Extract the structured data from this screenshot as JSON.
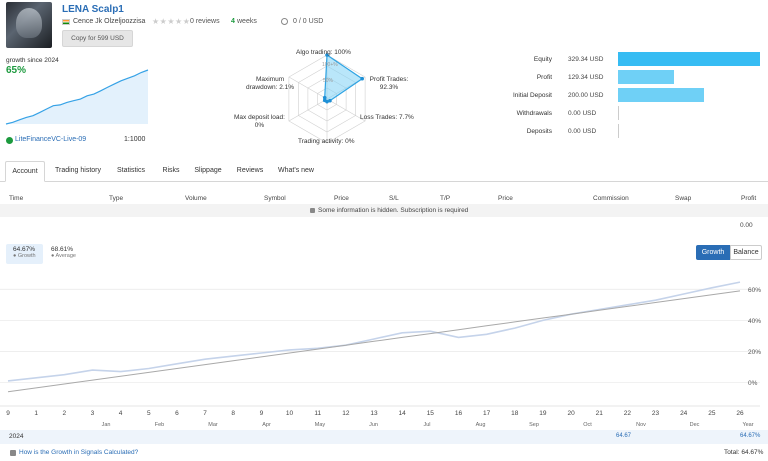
{
  "header": {
    "title": "LENA Scalp1",
    "author": "Cence Jk Olzeljoozzisa",
    "stars": "★★★★★",
    "reviews": "0 reviews",
    "weeks_num": "4",
    "weeks_label": "weeks",
    "cash": "0 / 0 USD",
    "copy_button": "Copy for 599 USD"
  },
  "summary": {
    "growth_since": "growth since 2024",
    "growth_pct": "65%",
    "account": "LiteFinanceVC-Live-09",
    "leverage": "1:1000",
    "sparkline": [
      0,
      2,
      5,
      8,
      10,
      14,
      18,
      22,
      23,
      26,
      28,
      30,
      34,
      36,
      40,
      44,
      48,
      52,
      55,
      58,
      62,
      65
    ]
  },
  "radar": {
    "algo": "Algo trading: 100%",
    "profit_trades": "Profit Trades: 92.3%",
    "loss_trades": "Loss Trades: 7.7%",
    "activity": "Trading activity: 0%",
    "deposit_load": "Max deposit load:",
    "deposit_load_val": "0%",
    "drawdown": "Maximum",
    "drawdown2": "drawdown: 2.1%",
    "ring_100": "100+%",
    "ring_50": "50%",
    "values": {
      "algo": 100,
      "profit": 92.3,
      "loss": 7.7,
      "activity": 0,
      "load": 0,
      "drawdown": 2.1
    }
  },
  "stats": [
    {
      "label": "Equity",
      "value": "329.34 USD",
      "amount": 329.34
    },
    {
      "label": "Profit",
      "value": "129.34 USD",
      "amount": 129.34
    },
    {
      "label": "Initial Deposit",
      "value": "200.00 USD",
      "amount": 200.0
    },
    {
      "label": "Withdrawals",
      "value": "0.00 USD",
      "amount": 0
    },
    {
      "label": "Deposits",
      "value": "0.00 USD",
      "amount": 0
    }
  ],
  "tabs": [
    "Account",
    "Trading history",
    "Statistics",
    "Risks",
    "Slippage",
    "Reviews",
    "What's new"
  ],
  "table": {
    "headers": [
      "Time",
      "Type",
      "Volume",
      "Symbol",
      "Price",
      "S/L",
      "T/P",
      "Price",
      "Commission",
      "Swap",
      "Profit"
    ],
    "hidden_notice": "Some information is hidden. Subscription is required",
    "total": "0.00"
  },
  "growth_tabs": [
    {
      "value": "64.67%",
      "label": "● Growth"
    },
    {
      "value": "68.61%",
      "label": "● Average"
    }
  ],
  "buttons": {
    "growth": "Growth",
    "balance": "Balance"
  },
  "chart_data": {
    "type": "line",
    "y_ticks": [
      "60%",
      "40%",
      "20%",
      "0%"
    ],
    "ylim": [
      -10,
      66
    ],
    "trades_axis": [
      "9",
      "1",
      "2",
      "3",
      "4",
      "5",
      "6",
      "7",
      "8",
      "9",
      "10",
      "11",
      "12",
      "13",
      "14",
      "15",
      "16",
      "17",
      "18",
      "19",
      "20",
      "21",
      "22",
      "23",
      "24",
      "25",
      "26"
    ],
    "months": [
      "Jan",
      "Feb",
      "Mar",
      "Apr",
      "May",
      "Jun",
      "Jul",
      "Aug",
      "Sep",
      "Oct",
      "Nov",
      "Dec",
      "Year"
    ],
    "series": [
      {
        "values": [
          1,
          3,
          5,
          8,
          7,
          9,
          12,
          15,
          17,
          19,
          21,
          22,
          24,
          28,
          32,
          33,
          29,
          31,
          35,
          40,
          44,
          47,
          50,
          53,
          57,
          61,
          64.67
        ]
      },
      {
        "values": [
          -6,
          -3.5,
          -1,
          1.5,
          4,
          6.5,
          9,
          11.5,
          14,
          16.5,
          19,
          21.5,
          24,
          26.5,
          29,
          31.5,
          34,
          36.5,
          39,
          41.5,
          44,
          46.5,
          49,
          51.5,
          54,
          56.5,
          59
        ]
      }
    ]
  },
  "year_row": {
    "year": "2024",
    "nov": "64.67",
    "total": "64.67%"
  },
  "footer": {
    "question": "How is the Growth in Signals Calculated?",
    "total": "Total: 64.67%"
  }
}
